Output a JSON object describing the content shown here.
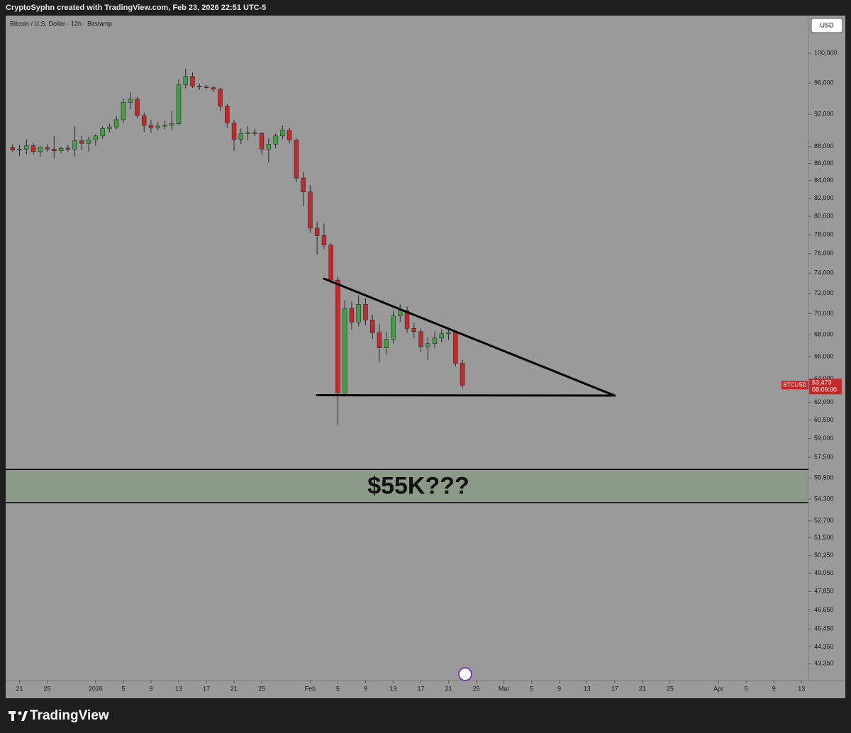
{
  "chart_data": {
    "type": "candlestick",
    "attribution": "CryptoSyphn created with TradingView.com, Feb 23, 2026 22:51 UTC-5",
    "title": "Bitcoin / U.S. Dollar · 12h · Bitstamp",
    "currency": "USD",
    "brand": "TradingView",
    "log": true,
    "grid": false,
    "up_color": "#43a047",
    "down_color": "#c62828",
    "x": [
      "2025-12-20",
      "2025-12-21",
      "2025-12-22",
      "2025-12-23",
      "2025-12-24",
      "2025-12-25",
      "2025-12-26",
      "2025-12-27",
      "2025-12-28",
      "2025-12-29",
      "2025-12-30",
      "2025-12-31",
      "2026-01-01",
      "2026-01-02",
      "2026-01-03",
      "2026-01-04",
      "2026-01-05",
      "2026-01-06",
      "2026-01-07",
      "2026-01-08",
      "2026-01-09",
      "2026-01-10",
      "2026-01-11",
      "2026-01-12",
      "2026-01-13",
      "2026-01-14",
      "2026-01-15",
      "2026-01-16",
      "2026-01-17",
      "2026-01-18",
      "2026-01-19",
      "2026-01-20",
      "2026-01-21",
      "2026-01-22",
      "2026-01-23",
      "2026-01-24",
      "2026-01-25",
      "2026-01-26",
      "2026-01-27",
      "2026-01-28",
      "2026-01-29",
      "2026-01-30",
      "2026-01-31",
      "2026-02-01",
      "2026-02-02",
      "2026-02-03",
      "2026-02-04",
      "2026-02-05",
      "2026-02-06",
      "2026-02-07",
      "2026-02-08",
      "2026-02-09",
      "2026-02-10",
      "2026-02-11",
      "2026-02-12",
      "2026-02-13",
      "2026-02-14",
      "2026-02-15",
      "2026-02-16",
      "2026-02-17",
      "2026-02-18",
      "2026-02-19",
      "2026-02-20",
      "2026-02-21",
      "2026-02-22",
      "2026-02-23"
    ],
    "open": [
      87900,
      87600,
      87700,
      88100,
      87400,
      87900,
      87700,
      87500,
      87800,
      87700,
      88700,
      88400,
      88800,
      89300,
      90200,
      90400,
      91300,
      93500,
      93900,
      91800,
      90600,
      90300,
      90500,
      90600,
      90800,
      95800,
      96900,
      95600,
      95500,
      95400,
      95200,
      93000,
      90900,
      88900,
      89600,
      89700,
      89600,
      87700,
      88300,
      89300,
      90000,
      88800,
      84300,
      82700,
      78700,
      77900,
      76900,
      73300,
      62800,
      70500,
      69200,
      70900,
      69400,
      68200,
      66800,
      67600,
      69800,
      70300,
      68600,
      68300,
      66900,
      67200,
      67700,
      68100,
      68200,
      65400
    ],
    "high": [
      88300,
      88200,
      88900,
      88400,
      88100,
      88300,
      89300,
      88000,
      88200,
      90500,
      89300,
      89200,
      89500,
      90500,
      90800,
      91800,
      94000,
      94800,
      94200,
      92200,
      91300,
      91000,
      91200,
      92400,
      96500,
      97900,
      97400,
      95900,
      95800,
      95600,
      95400,
      93300,
      91300,
      90200,
      90500,
      90200,
      89800,
      89000,
      89600,
      90600,
      90300,
      89000,
      85000,
      83500,
      79400,
      79200,
      77100,
      73700,
      71300,
      71200,
      71800,
      71500,
      69900,
      69000,
      68300,
      70300,
      70900,
      70700,
      69100,
      68600,
      67800,
      68300,
      68500,
      68600,
      68300,
      65700
    ],
    "low": [
      87300,
      86900,
      87100,
      87000,
      86800,
      87400,
      86600,
      87200,
      87400,
      86800,
      87600,
      87400,
      88100,
      88900,
      89700,
      90100,
      90900,
      92600,
      91500,
      89800,
      89700,
      90000,
      90100,
      90000,
      90600,
      95300,
      95400,
      95100,
      95200,
      94800,
      92400,
      90300,
      87500,
      88300,
      88800,
      89300,
      87000,
      86100,
      87800,
      88900,
      88400,
      83800,
      81100,
      78200,
      75900,
      76500,
      73000,
      60100,
      62500,
      68500,
      68800,
      68900,
      67600,
      65500,
      66200,
      67200,
      69200,
      68200,
      67700,
      66400,
      65700,
      66800,
      67300,
      67500,
      65100,
      63200
    ],
    "close": [
      87600,
      87700,
      88100,
      87400,
      87900,
      87700,
      87500,
      87800,
      87700,
      88700,
      88400,
      88800,
      89300,
      90200,
      90400,
      91300,
      93500,
      93900,
      91800,
      90600,
      90300,
      90500,
      90600,
      90800,
      95800,
      96900,
      95600,
      95500,
      95400,
      95200,
      93000,
      90900,
      88900,
      89600,
      89700,
      89600,
      87700,
      88300,
      89300,
      90000,
      88800,
      84300,
      82700,
      78700,
      77900,
      76900,
      73300,
      62800,
      70500,
      69200,
      70900,
      69400,
      68200,
      66800,
      67600,
      69800,
      70300,
      68600,
      68300,
      66900,
      67200,
      67700,
      68100,
      68200,
      65400,
      63473
    ],
    "xlim": [
      "2025-12-19",
      "2026-04-14"
    ],
    "xticks": [
      {
        "value": "2025-12-21",
        "label": "21"
      },
      {
        "value": "2025-12-25",
        "label": "25"
      },
      {
        "value": "2026-01-01",
        "label": "2026"
      },
      {
        "value": "2026-01-05",
        "label": "5"
      },
      {
        "value": "2026-01-09",
        "label": "9"
      },
      {
        "value": "2026-01-13",
        "label": "13"
      },
      {
        "value": "2026-01-17",
        "label": "17"
      },
      {
        "value": "2026-01-21",
        "label": "21"
      },
      {
        "value": "2026-01-25",
        "label": "25"
      },
      {
        "value": "2026-02-01",
        "label": "Feb"
      },
      {
        "value": "2026-02-05",
        "label": "5"
      },
      {
        "value": "2026-02-09",
        "label": "9"
      },
      {
        "value": "2026-02-13",
        "label": "13"
      },
      {
        "value": "2026-02-17",
        "label": "17"
      },
      {
        "value": "2026-02-21",
        "label": "21"
      },
      {
        "value": "2026-02-25",
        "label": "25"
      },
      {
        "value": "2026-03-01",
        "label": "Mar"
      },
      {
        "value": "2026-03-05",
        "label": "5"
      },
      {
        "value": "2026-03-09",
        "label": "9"
      },
      {
        "value": "2026-03-13",
        "label": "13"
      },
      {
        "value": "2026-03-17",
        "label": "17"
      },
      {
        "value": "2026-03-21",
        "label": "21"
      },
      {
        "value": "2026-03-25",
        "label": "25"
      },
      {
        "value": "2026-04-01",
        "label": "Apr"
      },
      {
        "value": "2026-04-05",
        "label": "5"
      },
      {
        "value": "2026-04-09",
        "label": "9"
      },
      {
        "value": "2026-04-13",
        "label": "13"
      }
    ],
    "ylim": [
      42350,
      105300
    ],
    "yticks": [
      {
        "value": 100000,
        "label": "100,000"
      },
      {
        "value": 96000,
        "label": "96,000"
      },
      {
        "value": 92000,
        "label": "92,000"
      },
      {
        "value": 88000,
        "label": "88,000"
      },
      {
        "value": 86000,
        "label": "86,000"
      },
      {
        "value": 84000,
        "label": "84,000"
      },
      {
        "value": 82000,
        "label": "82,000"
      },
      {
        "value": 80000,
        "label": "80,000"
      },
      {
        "value": 78000,
        "label": "78,000"
      },
      {
        "value": 76000,
        "label": "76,000"
      },
      {
        "value": 74000,
        "label": "74,000"
      },
      {
        "value": 72000,
        "label": "72,000"
      },
      {
        "value": 70000,
        "label": "70,000"
      },
      {
        "value": 68000,
        "label": "68,000"
      },
      {
        "value": 66000,
        "label": "66,000"
      },
      {
        "value": 64000,
        "label": "64,000"
      },
      {
        "value": 62000,
        "label": "62,000"
      },
      {
        "value": 60500,
        "label": "60,500"
      },
      {
        "value": 59000,
        "label": "59,000"
      },
      {
        "value": 57500,
        "label": "57,500"
      },
      {
        "value": 55900,
        "label": "55,900"
      },
      {
        "value": 54300,
        "label": "54,300"
      },
      {
        "value": 52700,
        "label": "52,700"
      },
      {
        "value": 51500,
        "label": "51,500"
      },
      {
        "value": 50250,
        "label": "50,250"
      },
      {
        "value": 49050,
        "label": "49,050"
      },
      {
        "value": 47850,
        "label": "47,850"
      },
      {
        "value": 46650,
        "label": "46,650"
      },
      {
        "value": 45450,
        "label": "45,450"
      },
      {
        "value": 44350,
        "label": "44,350"
      },
      {
        "value": 43350,
        "label": "43,350"
      }
    ],
    "trendlines": [
      {
        "x": [
          "2026-02-03",
          "2026-03-17"
        ],
        "y": [
          73440,
          62570
        ]
      },
      {
        "x": [
          "2026-02-02",
          "2026-03-17"
        ],
        "y": [
          62600,
          62570
        ]
      }
    ],
    "zone": {
      "label": "$55K???",
      "range": [
        54040,
        56550
      ],
      "color": "#8a9a87"
    },
    "last_price": {
      "symbol": "BTCUSD",
      "value": 63473,
      "label": "63,473",
      "countdown": "08:09:00",
      "color": "#c62828"
    }
  }
}
